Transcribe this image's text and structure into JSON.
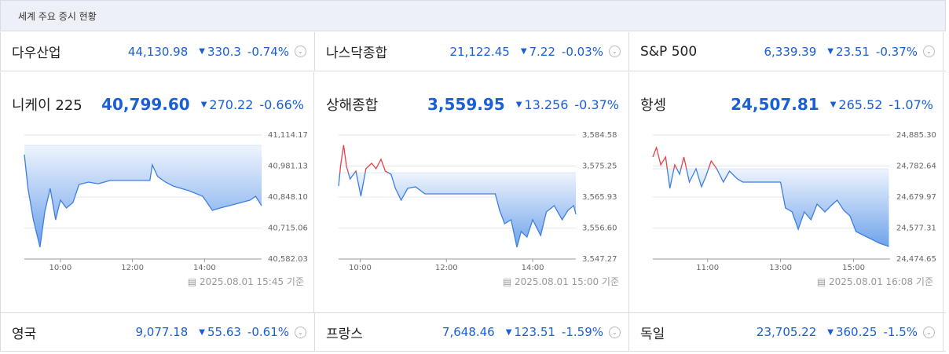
{
  "header": {
    "title": "세계 주요 증시 현황"
  },
  "top_row": [
    {
      "name": "다우산업",
      "value": "44,130.98",
      "change": "330.3",
      "change_pct": "-0.74%"
    },
    {
      "name": "나스닥종합",
      "value": "21,122.45",
      "change": "7.22",
      "change_pct": "-0.03%"
    },
    {
      "name": "S&P 500",
      "value": "6,339.39",
      "change": "23.51",
      "change_pct": "-0.37%"
    }
  ],
  "panels": [
    {
      "name": "니케이 225",
      "price": {
        "value": 40799.6,
        "label": "40,799.60"
      },
      "change": 270.22,
      "change_pct": "-0.66%",
      "footer": "2025.08.01 15:45 기준",
      "chart_data": {
        "type": "line",
        "color": "#3d7fe0",
        "up_color": "#e8414a",
        "x": [
          "09:00",
          "09:06",
          "09:15",
          "09:26",
          "09:34",
          "09:43",
          "09:52",
          "10:00",
          "10:10",
          "10:21",
          "10:31",
          "10:47",
          "11:03",
          "11:23",
          "12:29",
          "12:33",
          "12:42",
          "12:55",
          "13:08",
          "13:21",
          "13:34",
          "13:57",
          "14:13",
          "14:26",
          "14:52",
          "15:16",
          "15:25",
          "15:35"
        ],
        "values": [
          41030,
          40885,
          40750,
          40633,
          40784,
          40885,
          40750,
          40835,
          40801,
          40825,
          40902,
          40912,
          40905,
          40919,
          40919,
          40986,
          40936,
          40912,
          40895,
          40885,
          40875,
          40851,
          40791,
          40801,
          40818,
          40835,
          40851,
          40811
        ],
        "xlim": [
          "09:00",
          "15:35"
        ],
        "xticks": [
          "10:00",
          "12:00",
          "14:00"
        ],
        "ylim": [
          40582.03,
          41114.17
        ],
        "yticks": [
          {
            "value": 40582.03,
            "label": "40,582.03"
          },
          {
            "value": 40715.06,
            "label": "40,715.06"
          },
          {
            "value": 40848.1,
            "label": "40,848.10"
          },
          {
            "value": 40981.13,
            "label": "40,981.13"
          },
          {
            "value": 41114.17,
            "label": "41,114.17"
          }
        ],
        "grid": true
      }
    },
    {
      "name": "상해종합",
      "price": {
        "value": 3559.95,
        "label": "3,559.95"
      },
      "change": 13.256,
      "change_pct": "-0.37%",
      "footer": "2025.08.01 15:00 기준",
      "chart_data": {
        "type": "line",
        "color": "#3d7fe0",
        "up_color": "#e8414a",
        "x": [
          "09:30",
          "09:33",
          "09:37",
          "09:41",
          "09:46",
          "09:54",
          "10:01",
          "10:08",
          "10:16",
          "10:22",
          "10:29",
          "10:35",
          "10:43",
          "10:49",
          "10:57",
          "11:06",
          "11:17",
          "11:30",
          "13:08",
          "13:14",
          "13:21",
          "13:30",
          "13:38",
          "13:44",
          "13:52",
          "14:00",
          "14:11",
          "14:19",
          "14:30",
          "14:41",
          "14:49",
          "14:57",
          "15:00"
        ],
        "values": [
          3569.23,
          3575.61,
          3581.51,
          3575.14,
          3571.36,
          3573.72,
          3566.16,
          3574.43,
          3576.08,
          3574.43,
          3577.26,
          3573.72,
          3572.78,
          3568.53,
          3564.98,
          3568.53,
          3569,
          3566.87,
          3566.87,
          3561.91,
          3557.9,
          3559.08,
          3550.82,
          3555.54,
          3553.89,
          3559.08,
          3554.36,
          3561.44,
          3563.33,
          3559.08,
          3561.91,
          3563.33,
          3560.73
        ],
        "xlim": [
          "09:30",
          "15:00"
        ],
        "xticks": [
          "10:00",
          "12:00",
          "14:00"
        ],
        "ylim": [
          3547.27,
          3584.58
        ],
        "yticks": [
          {
            "value": 3547.27,
            "label": "3,547.27"
          },
          {
            "value": 3556.6,
            "label": "3,556.60"
          },
          {
            "value": 3565.93,
            "label": "3,565.93"
          },
          {
            "value": 3575.25,
            "label": "3,575.25"
          },
          {
            "value": 3584.58,
            "label": "3,584.58"
          }
        ],
        "grid": true
      }
    },
    {
      "name": "항셍",
      "price": {
        "value": 24507.81,
        "label": "24,507.81"
      },
      "change": 265.52,
      "change_pct": "-1.07%",
      "footer": "2025.08.01 16:08 기준",
      "chart_data": {
        "type": "line",
        "color": "#3d7fe0",
        "up_color": "#e8414a",
        "x": [
          "09:30",
          "09:36",
          "09:43",
          "09:51",
          "09:58",
          "10:06",
          "10:14",
          "10:21",
          "10:30",
          "10:41",
          "10:50",
          "10:57",
          "11:06",
          "11:15",
          "11:26",
          "11:36",
          "11:49",
          "11:58",
          "13:00",
          "13:08",
          "13:19",
          "13:29",
          "13:39",
          "13:50",
          "14:00",
          "14:13",
          "14:23",
          "14:33",
          "14:44",
          "14:54",
          "15:04",
          "15:17",
          "15:30",
          "15:43",
          "15:58"
        ],
        "values": [
          24812.5,
          24843.7,
          24786.5,
          24812.5,
          24708.6,
          24786.5,
          24755.3,
          24812.5,
          24729.3,
          24773.5,
          24713.8,
          24747.6,
          24799.5,
          24773.5,
          24729.3,
          24765.7,
          24739.8,
          24729.3,
          24729.3,
          24643.6,
          24630.6,
          24573.4,
          24630.6,
          24604.6,
          24656.6,
          24630.6,
          24651.4,
          24669.6,
          24635.8,
          24617.6,
          24565.6,
          24552.6,
          24539.6,
          24526.6,
          24516.3
        ],
        "xlim": [
          "09:30",
          "16:00"
        ],
        "xticks": [
          "11:00",
          "13:00",
          "15:00"
        ],
        "ylim": [
          24474.65,
          24885.3
        ],
        "yticks": [
          {
            "value": 24474.65,
            "label": "24,474.65"
          },
          {
            "value": 24577.31,
            "label": "24,577.31"
          },
          {
            "value": 24679.97,
            "label": "24,679.97"
          },
          {
            "value": 24782.64,
            "label": "24,782.64"
          },
          {
            "value": 24885.3,
            "label": "24,885.30"
          }
        ],
        "grid": true
      }
    }
  ],
  "bottom_row": [
    {
      "name": "영국",
      "value": "9,077.18",
      "change": "55.63",
      "change_pct": "-0.61%"
    },
    {
      "name": "프랑스",
      "value": "7,648.46",
      "change": "123.51",
      "change_pct": "-1.59%"
    },
    {
      "name": "독일",
      "value": "23,705.22",
      "change": "360.25",
      "change_pct": "-1.5%"
    }
  ]
}
